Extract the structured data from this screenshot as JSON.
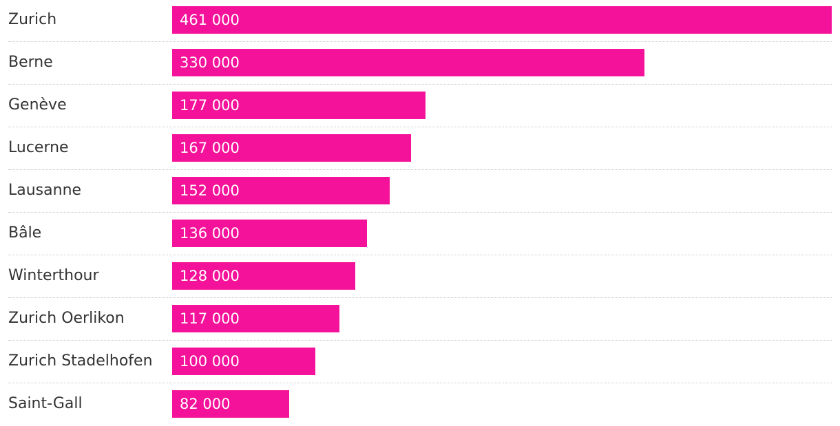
{
  "chart_data": {
    "type": "bar",
    "orientation": "horizontal",
    "title": "",
    "xlabel": "",
    "ylabel": "",
    "xlim": [
      0,
      461000
    ],
    "grid": false,
    "bar_color": "#f5129a",
    "categories": [
      "Zurich",
      "Berne",
      "Genève",
      "Lucerne",
      "Lausanne",
      "Bâle",
      "Winterthour",
      "Zurich Oerlikon",
      "Zurich Stadelhofen",
      "Saint-Gall"
    ],
    "values": [
      461000,
      330000,
      177000,
      167000,
      152000,
      136000,
      128000,
      117000,
      100000,
      82000
    ],
    "value_labels": [
      "461 000",
      "330 000",
      "177 000",
      "167 000",
      "152 000",
      "136 000",
      "128 000",
      "117 000",
      "100 000",
      "82 000"
    ]
  }
}
